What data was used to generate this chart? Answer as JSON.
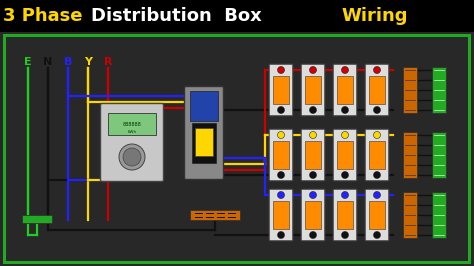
{
  "title_parts": [
    {
      "text": "3 Phase ",
      "color": "#FFD700"
    },
    {
      "text": "Distribution  Box ",
      "color": "#FFFFFF"
    },
    {
      "text": "Wiring",
      "color": "#FFD700"
    }
  ],
  "title_bg": "#000000",
  "diagram_bg": "#1a1a1a",
  "border_color": "#22AA22",
  "label_letters": [
    "E",
    "N",
    "B",
    "Y",
    "R"
  ],
  "label_colors": [
    "#22CC22",
    "#111111",
    "#2222FF",
    "#FFD700",
    "#CC0000"
  ],
  "wire_colors": [
    "#22CC22",
    "#111111",
    "#2222FF",
    "#FFD700",
    "#CC0000"
  ],
  "phase_colors": [
    "#2222FF",
    "#FFD700",
    "#CC0000"
  ],
  "neutral_color": "#111111",
  "earth_color": "#22CC22",
  "orange_color": "#FF8C00",
  "green_color": "#22AA22",
  "figw": 4.74,
  "figh": 2.66,
  "dpi": 100
}
